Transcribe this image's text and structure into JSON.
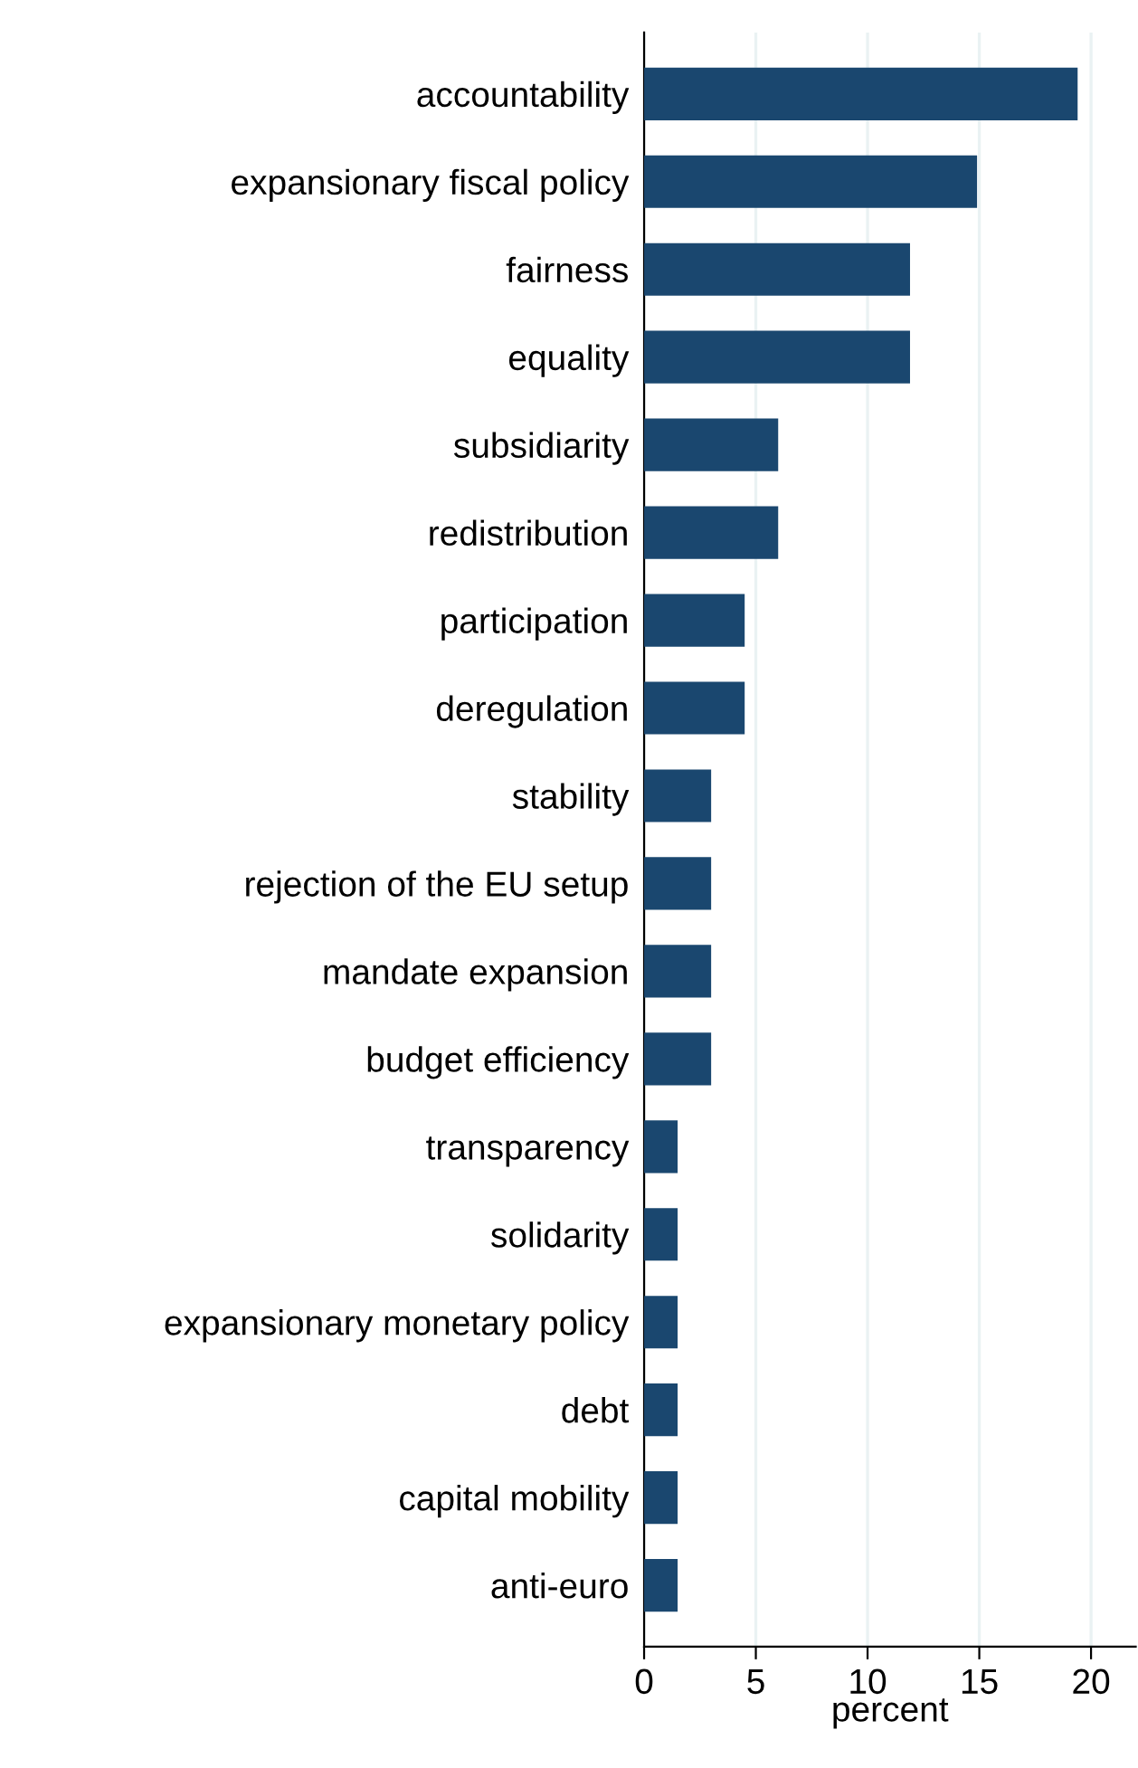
{
  "chart_data": {
    "type": "bar",
    "orientation": "horizontal",
    "xlabel": "percent",
    "categories": [
      "accountability",
      "expansionary fiscal policy",
      "fairness",
      "equality",
      "subsidiarity",
      "redistribution",
      "participation",
      "deregulation",
      "stability",
      "rejection of the EU setup",
      "mandate expansion",
      "budget efficiency",
      "transparency",
      "solidarity",
      "expansionary monetary policy",
      "debt",
      "capital mobility",
      "anti-euro"
    ],
    "values": [
      19.4,
      14.9,
      11.9,
      11.9,
      6.0,
      6.0,
      4.5,
      4.5,
      3.0,
      3.0,
      3.0,
      3.0,
      1.5,
      1.5,
      1.5,
      1.5,
      1.5,
      1.5
    ],
    "color": "#1a476f",
    "xlim": [
      0,
      22
    ],
    "xticks": [
      0,
      5,
      10,
      15,
      20
    ],
    "grid": "x"
  }
}
